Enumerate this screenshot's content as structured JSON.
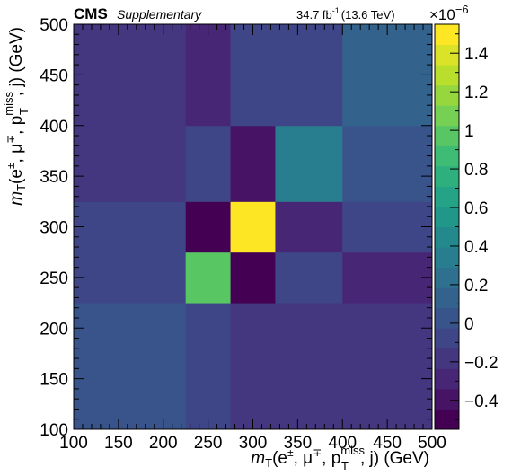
{
  "header": {
    "experiment": "CMS",
    "tag": "Supplementary",
    "lumi": "34.7 fb",
    "lumi_sup": "-1",
    "energy": "(13.6 TeV)"
  },
  "chart_data": {
    "type": "heatmap",
    "title": "",
    "xlabel": "m_T(e±, μ∓, p_T^miss, j) (GeV)",
    "ylabel": "m_T(e±, μ∓, p_T^miss, j) (GeV)",
    "xlabel_parts": {
      "m": "m",
      "T": "T",
      "args": "(e",
      "pm": "±",
      "comma1": ", μ",
      "mp": "∓",
      "comma2": ", p",
      "miss": "miss",
      "T2": "T",
      "tail": ", j) (GeV)"
    },
    "x_edges": [
      100,
      225,
      275,
      325,
      400,
      500
    ],
    "y_edges": [
      100,
      225,
      275,
      325,
      400,
      500
    ],
    "xlim": [
      100,
      500
    ],
    "ylim": [
      100,
      500
    ],
    "x_ticks": [
      100,
      150,
      200,
      250,
      300,
      350,
      400,
      450,
      500
    ],
    "y_ticks": [
      100,
      150,
      200,
      250,
      300,
      350,
      400,
      450,
      500
    ],
    "cell_values_e6": [
      [
        0.05,
        -0.1,
        -0.18,
        -0.18,
        -0.18
      ],
      [
        -0.05,
        1.0,
        -0.52,
        -0.05,
        -0.3
      ],
      [
        -0.05,
        -0.52,
        1.5,
        -0.32,
        -0.05
      ],
      [
        -0.15,
        -0.1,
        -0.35,
        0.35,
        0.05
      ],
      [
        -0.15,
        -0.3,
        -0.1,
        -0.05,
        0.1
      ]
    ],
    "colorbar": {
      "min": -0.55,
      "max": 1.55,
      "ticks": [
        -0.4,
        -0.2,
        0,
        0.2,
        0.4,
        0.6,
        0.8,
        1,
        1.2,
        1.4
      ],
      "tick_labels": [
        "−0.4",
        "−0.2",
        "0",
        "0.2",
        "0.4",
        "0.6",
        "0.8",
        "1",
        "1.2",
        "1.4"
      ],
      "exponent": "×10",
      "exponent_sup": "−6",
      "colormap": "viridis"
    },
    "grid": false,
    "legend": "none"
  }
}
